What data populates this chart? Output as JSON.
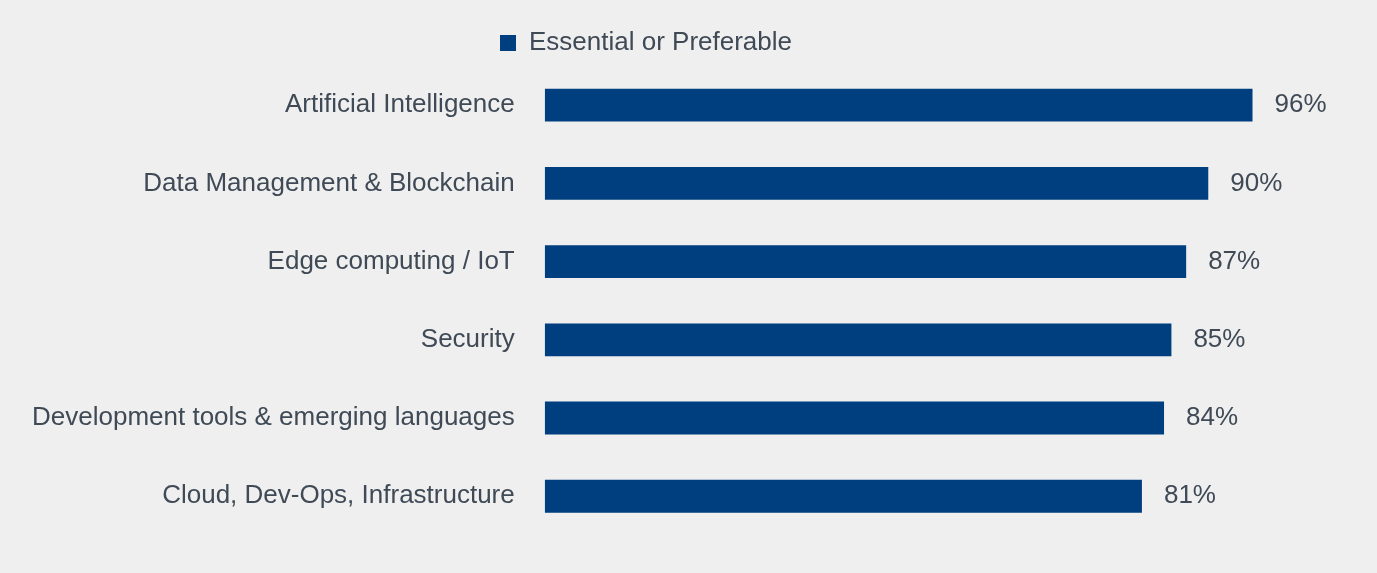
{
  "chart_data": {
    "type": "bar",
    "orientation": "horizontal",
    "categories": [
      "Artificial Intelligence",
      "Data Management & Blockchain",
      "Edge computing / IoT",
      "Security",
      "Development tools & emerging languages",
      "Cloud, Dev-Ops, Infrastructure"
    ],
    "series": [
      {
        "name": "Essential or Preferable",
        "color": "#003f7f",
        "values": [
          96,
          90,
          87,
          85,
          84,
          81
        ],
        "value_labels": [
          "96%",
          "90%",
          "87%",
          "85%",
          "84%",
          "81%"
        ]
      }
    ],
    "legend": "top"
  }
}
